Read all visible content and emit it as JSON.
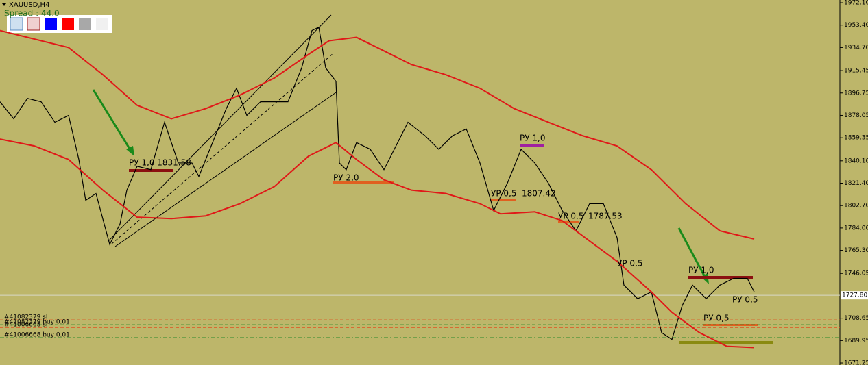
{
  "chart_data": {
    "type": "line",
    "title": "XAUUSD,H4",
    "subtitle": "Spread : 44.0",
    "xlim": [
      0,
      1225
    ],
    "ylim": [
      1669.55,
      1974.4
    ],
    "yticks": [
      {
        "value": 1972.1,
        "label": "1972.10"
      },
      {
        "value": 1953.4,
        "label": "1953.40"
      },
      {
        "value": 1934.7,
        "label": "1934.70"
      },
      {
        "value": 1915.45,
        "label": "1915.45"
      },
      {
        "value": 1896.75,
        "label": "1896.75"
      },
      {
        "value": 1878.05,
        "label": "1878.05"
      },
      {
        "value": 1859.35,
        "label": "1859.35"
      },
      {
        "value": 1840.1,
        "label": "1840.10"
      },
      {
        "value": 1821.4,
        "label": "1821.40"
      },
      {
        "value": 1802.7,
        "label": "1802.70"
      },
      {
        "value": 1784,
        "label": "1784.00"
      },
      {
        "value": 1765.3,
        "label": "1765.30"
      },
      {
        "value": 1746.05,
        "label": "1746.05"
      },
      {
        "value": 1708.65,
        "label": "1708.65"
      },
      {
        "value": 1689.95,
        "label": "1689.95"
      },
      {
        "value": 1671.25,
        "label": "1671.25"
      }
    ],
    "current_price": {
      "value": 1727.8,
      "label": "1727.80"
    },
    "series": [
      {
        "color": "#000000",
        "x": [
          0,
          20,
          40,
          60,
          80,
          100,
          115,
          125,
          140,
          160,
          175,
          185,
          200,
          220,
          240,
          260,
          280,
          290,
          310,
          330,
          345,
          360,
          380,
          400,
          420,
          440,
          455,
          465,
          475,
          490,
          495,
          505,
          520,
          540,
          560,
          580,
          595,
          620,
          640,
          660,
          680,
          700,
          720,
          740,
          760,
          780,
          800,
          820,
          840,
          860,
          880,
          900,
          910,
          930,
          950,
          965,
          980,
          995,
          1010,
          1030,
          1050,
          1070,
          1090,
          1100
        ],
        "values": [
          1889.4,
          1875.2,
          1892.2,
          1889.4,
          1872.3,
          1878.0,
          1841.2,
          1807.1,
          1812.8,
          1770.3,
          1787.3,
          1815.6,
          1835.5,
          1832.7,
          1872.3,
          1838.3,
          1838.3,
          1827.0,
          1855.3,
          1883.7,
          1900.7,
          1878.0,
          1889.4,
          1889.4,
          1889.4,
          1917.7,
          1948.9,
          1951.7,
          1917.7,
          1906.4,
          1838.3,
          1832.7,
          1855.3,
          1849.7,
          1832.7,
          1855.3,
          1872.3,
          1861.0,
          1849.7,
          1861.0,
          1866.7,
          1838.3,
          1798.6,
          1821.3,
          1849.7,
          1838.3,
          1821.3,
          1798.6,
          1781.6,
          1804.3,
          1804.3,
          1776.0,
          1736.3,
          1724.9,
          1730.6,
          1696.6,
          1690.9,
          1719.2,
          1736.3,
          1724.9,
          1736.3,
          1741.9,
          1741.9,
          1730.6
        ]
      },
      {
        "color": "#e01818",
        "x": [
          0,
          100,
          150,
          200,
          250,
          300,
          350,
          400,
          450,
          480,
          520,
          560,
          600,
          650,
          700,
          750,
          800,
          850,
          900,
          950,
          1000,
          1050,
          1100
        ],
        "values": [
          1948.9,
          1934.7,
          1912.0,
          1886.5,
          1875.2,
          1883.7,
          1895.0,
          1909.2,
          1929.0,
          1940.4,
          1943.2,
          1931.9,
          1920.5,
          1912.0,
          1900.7,
          1883.7,
          1872.3,
          1861.0,
          1852.5,
          1832.7,
          1804.3,
          1781.6,
          1774.8
        ]
      },
      {
        "color": "#e01818",
        "x": [
          0,
          50,
          100,
          150,
          200,
          250,
          300,
          350,
          400,
          450,
          490,
          520,
          560,
          600,
          650,
          700,
          730,
          780,
          820,
          860,
          900,
          950,
          980,
          1020,
          1060,
          1100
        ],
        "values": [
          1858.2,
          1852.5,
          1841.2,
          1815.6,
          1793.0,
          1791.8,
          1794.1,
          1804.3,
          1818.5,
          1844.0,
          1855.3,
          1841.2,
          1824.2,
          1815.6,
          1812.8,
          1804.3,
          1795.8,
          1797.5,
          1790.1,
          1773.1,
          1756.1,
          1730.6,
          1713.6,
          1696.6,
          1685.2,
          1684.1
        ]
      }
    ],
    "annotations": [
      "РУ 1,0 1831.58",
      "РУ 2,0",
      "РУ 1,0",
      "УР 0,5",
      "1807.42",
      "УР 0,5",
      "1787.53",
      "УР 0,5",
      "РУ 1,0",
      "РУ 0,5",
      "РУ 0,5"
    ],
    "orders": [
      {
        "label": "#41082379 sl",
        "price": 1707.2,
        "color": "#e05020"
      },
      {
        "label": "#41082379 buy 0.01",
        "price": 1703.2,
        "color": "#2a8a2a"
      },
      {
        "label": "#41006668 sl",
        "price": 1700.9,
        "color": "#e05020"
      },
      {
        "label": "#41006668 buy 0.01",
        "price": 1692.4,
        "color": "#2a8a2a"
      }
    ]
  }
}
